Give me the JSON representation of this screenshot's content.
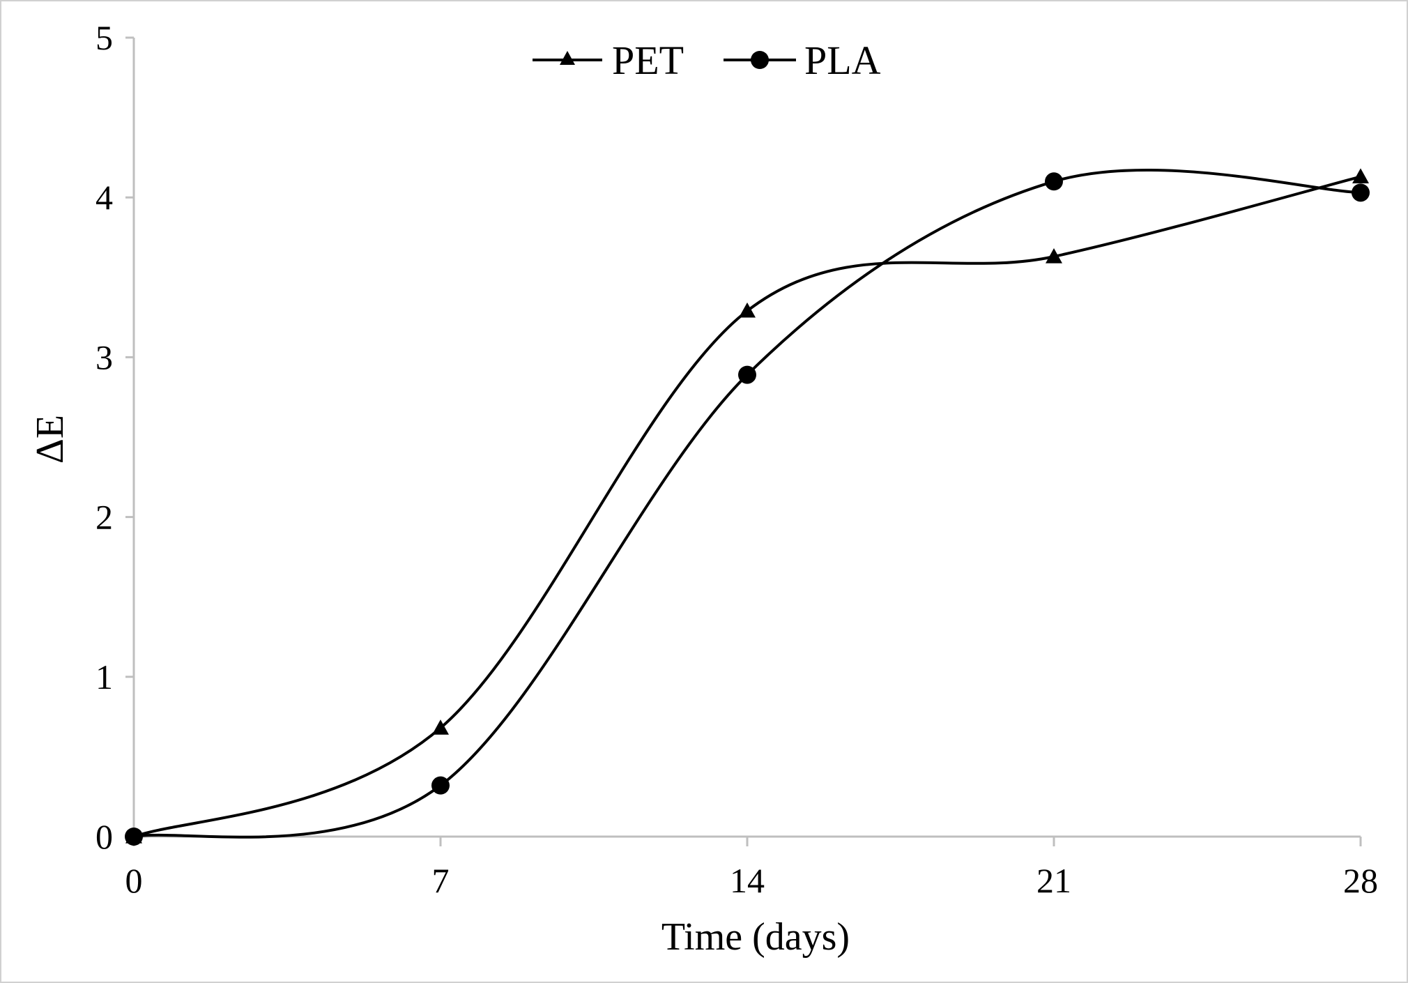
{
  "chart_data": {
    "type": "line",
    "title": "",
    "xlabel": "Time (days)",
    "ylabel": "ΔE",
    "categories": [
      "0",
      "7",
      "14",
      "21",
      "28"
    ],
    "x": [
      0,
      7,
      14,
      21,
      28
    ],
    "xlim": [
      0,
      28
    ],
    "ylim": [
      0,
      5
    ],
    "yticks": [
      "0",
      "1",
      "2",
      "3",
      "4",
      "5"
    ],
    "grid": false,
    "smooth": true,
    "legend_position": "top-center",
    "series": [
      {
        "name": "PET",
        "marker": "triangle",
        "color": "#000000",
        "values": [
          0,
          0.68,
          3.29,
          3.63,
          4.13
        ]
      },
      {
        "name": "PLA",
        "marker": "circle",
        "color": "#000000",
        "values": [
          0,
          0.32,
          2.89,
          4.1,
          4.03
        ]
      }
    ]
  }
}
